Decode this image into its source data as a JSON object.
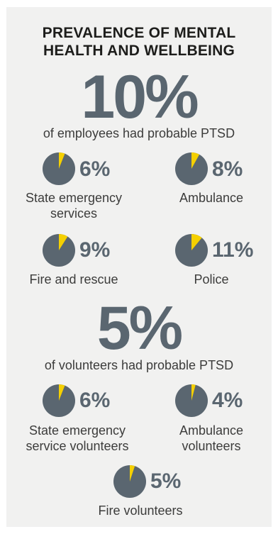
{
  "title_line1": "PREVALENCE OF MENTAL",
  "title_line2": "HEALTH AND WELLBEING",
  "colors": {
    "pie_base": "#5a6670",
    "pie_slice": "#f5d000",
    "background": "#f1f1f0"
  },
  "chart_data": [
    {
      "type": "pie",
      "headline_value": "10%",
      "headline_caption": "of employees had probable PTSD",
      "categories": [
        "State emergency services",
        "Ambulance",
        "Fire and rescue",
        "Police"
      ],
      "values": [
        6,
        8,
        9,
        11
      ],
      "value_labels": [
        "6%",
        "8%",
        "9%",
        "11%"
      ],
      "label_lines": [
        [
          "State emergency",
          "services"
        ],
        [
          "Ambulance"
        ],
        [
          "Fire and rescue"
        ],
        [
          "Police"
        ]
      ]
    },
    {
      "type": "pie",
      "headline_value": "5%",
      "headline_caption": "of volunteers had probable PTSD",
      "categories": [
        "State emergency service volunteers",
        "Ambulance volunteers",
        "Fire volunteers"
      ],
      "values": [
        6,
        4,
        5
      ],
      "value_labels": [
        "6%",
        "4%",
        "5%"
      ],
      "label_lines": [
        [
          "State emergency",
          "service volunteers"
        ],
        [
          "Ambulance",
          "volunteers"
        ],
        [
          "Fire volunteers"
        ]
      ]
    }
  ]
}
